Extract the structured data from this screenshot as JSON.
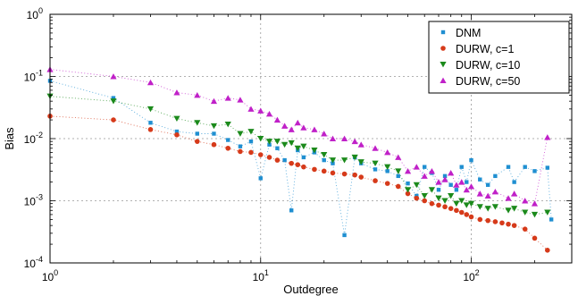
{
  "chart_data": {
    "type": "scatter",
    "title": "",
    "xlabel": "Outdegree",
    "ylabel": "Bias",
    "xscale": "log",
    "yscale": "log",
    "xlim": [
      1,
      300
    ],
    "ylim": [
      0.0001,
      1
    ],
    "grid": true,
    "legend_position": "top-right",
    "x_ticks": [
      {
        "base": "10",
        "exp": "0"
      },
      {
        "base": "10",
        "exp": "1"
      },
      {
        "base": "10",
        "exp": "2"
      }
    ],
    "y_ticks": [
      {
        "base": "10",
        "exp": "-4"
      },
      {
        "base": "10",
        "exp": "-3"
      },
      {
        "base": "10",
        "exp": "-2"
      },
      {
        "base": "10",
        "exp": "-1"
      },
      {
        "base": "10",
        "exp": "0"
      }
    ],
    "series": [
      {
        "name": "DNM",
        "marker": "square",
        "color": "#1f8fd1",
        "points": [
          [
            1,
            0.085
          ],
          [
            2,
            0.045
          ],
          [
            3,
            0.018
          ],
          [
            4,
            0.013
          ],
          [
            5,
            0.012
          ],
          [
            6,
            0.012
          ],
          [
            7,
            0.0095
          ],
          [
            8,
            0.0075
          ],
          [
            9,
            0.009
          ],
          [
            10,
            0.0023
          ],
          [
            11,
            0.008
          ],
          [
            12,
            0.007
          ],
          [
            13,
            0.0045
          ],
          [
            14,
            0.0007
          ],
          [
            15,
            0.0065
          ],
          [
            16,
            0.005
          ],
          [
            18,
            0.006
          ],
          [
            20,
            0.0045
          ],
          [
            22,
            0.004
          ],
          [
            25,
            0.00028
          ],
          [
            28,
            0.005
          ],
          [
            30,
            0.004
          ],
          [
            35,
            0.0032
          ],
          [
            40,
            0.003
          ],
          [
            45,
            0.0025
          ],
          [
            50,
            0.0019
          ],
          [
            55,
            0.0012
          ],
          [
            60,
            0.0035
          ],
          [
            65,
            0.0028
          ],
          [
            70,
            0.0015
          ],
          [
            75,
            0.0025
          ],
          [
            80,
            0.0018
          ],
          [
            85,
            0.0015
          ],
          [
            90,
            0.0035
          ],
          [
            95,
            0.002
          ],
          [
            100,
            0.0045
          ],
          [
            110,
            0.0022
          ],
          [
            120,
            0.0018
          ],
          [
            130,
            0.0025
          ],
          [
            150,
            0.0035
          ],
          [
            160,
            0.002
          ],
          [
            180,
            0.0035
          ],
          [
            200,
            0.003
          ],
          [
            230,
            0.0034
          ],
          [
            240,
            0.0005
          ]
        ]
      },
      {
        "name": "DURW, c=1",
        "marker": "circle",
        "color": "#d63a1a",
        "points": [
          [
            1,
            0.023
          ],
          [
            2,
            0.02
          ],
          [
            3,
            0.014
          ],
          [
            4,
            0.0115
          ],
          [
            5,
            0.009
          ],
          [
            6,
            0.008
          ],
          [
            7,
            0.007
          ],
          [
            8,
            0.0062
          ],
          [
            9,
            0.006
          ],
          [
            10,
            0.0055
          ],
          [
            11,
            0.005
          ],
          [
            12,
            0.0045
          ],
          [
            14,
            0.004
          ],
          [
            15,
            0.0038
          ],
          [
            16,
            0.0035
          ],
          [
            18,
            0.0032
          ],
          [
            20,
            0.003
          ],
          [
            22,
            0.0028
          ],
          [
            25,
            0.0027
          ],
          [
            28,
            0.0026
          ],
          [
            30,
            0.0024
          ],
          [
            35,
            0.0021
          ],
          [
            40,
            0.0019
          ],
          [
            45,
            0.0017
          ],
          [
            50,
            0.0013
          ],
          [
            55,
            0.0011
          ],
          [
            60,
            0.001
          ],
          [
            65,
            0.0009
          ],
          [
            70,
            0.00085
          ],
          [
            75,
            0.0008
          ],
          [
            80,
            0.00075
          ],
          [
            85,
            0.0007
          ],
          [
            90,
            0.00065
          ],
          [
            95,
            0.0006
          ],
          [
            100,
            0.00055
          ],
          [
            110,
            0.0005
          ],
          [
            120,
            0.00048
          ],
          [
            130,
            0.00046
          ],
          [
            140,
            0.00044
          ],
          [
            150,
            0.00042
          ],
          [
            160,
            0.0004
          ],
          [
            180,
            0.00035
          ],
          [
            200,
            0.00025
          ],
          [
            230,
            0.00016
          ]
        ]
      },
      {
        "name": "DURW, c=10",
        "marker": "triangle-down",
        "color": "#1b8a1b",
        "points": [
          [
            1,
            0.048
          ],
          [
            2,
            0.04
          ],
          [
            3,
            0.03
          ],
          [
            4,
            0.021
          ],
          [
            5,
            0.018
          ],
          [
            6,
            0.016
          ],
          [
            7,
            0.017
          ],
          [
            8,
            0.012
          ],
          [
            9,
            0.013
          ],
          [
            10,
            0.01
          ],
          [
            11,
            0.009
          ],
          [
            12,
            0.009
          ],
          [
            13,
            0.008
          ],
          [
            14,
            0.0085
          ],
          [
            15,
            0.007
          ],
          [
            16,
            0.0075
          ],
          [
            18,
            0.0065
          ],
          [
            20,
            0.0055
          ],
          [
            22,
            0.0045
          ],
          [
            25,
            0.0045
          ],
          [
            28,
            0.005
          ],
          [
            30,
            0.0042
          ],
          [
            35,
            0.004
          ],
          [
            40,
            0.0035
          ],
          [
            45,
            0.003
          ],
          [
            50,
            0.0015
          ],
          [
            55,
            0.0018
          ],
          [
            60,
            0.0012
          ],
          [
            65,
            0.0015
          ],
          [
            70,
            0.0011
          ],
          [
            75,
            0.001
          ],
          [
            80,
            0.0012
          ],
          [
            85,
            0.0009
          ],
          [
            90,
            0.001
          ],
          [
            95,
            0.00085
          ],
          [
            100,
            0.0009
          ],
          [
            110,
            0.0008
          ],
          [
            120,
            0.00075
          ],
          [
            130,
            0.0008
          ],
          [
            150,
            0.0007
          ],
          [
            160,
            0.00075
          ],
          [
            180,
            0.00065
          ],
          [
            200,
            0.0006
          ],
          [
            230,
            0.00065
          ]
        ]
      },
      {
        "name": "DURW, c=50",
        "marker": "triangle-up",
        "color": "#c020c8",
        "points": [
          [
            1,
            0.13
          ],
          [
            2,
            0.1
          ],
          [
            3,
            0.08
          ],
          [
            4,
            0.055
          ],
          [
            5,
            0.05
          ],
          [
            6,
            0.04
          ],
          [
            7,
            0.045
          ],
          [
            8,
            0.042
          ],
          [
            9,
            0.03
          ],
          [
            10,
            0.028
          ],
          [
            11,
            0.025
          ],
          [
            12,
            0.02
          ],
          [
            13,
            0.016
          ],
          [
            14,
            0.014
          ],
          [
            15,
            0.018
          ],
          [
            16,
            0.015
          ],
          [
            18,
            0.014
          ],
          [
            20,
            0.012
          ],
          [
            22,
            0.01
          ],
          [
            25,
            0.01
          ],
          [
            28,
            0.009
          ],
          [
            30,
            0.008
          ],
          [
            35,
            0.007
          ],
          [
            40,
            0.006
          ],
          [
            45,
            0.005
          ],
          [
            50,
            0.003
          ],
          [
            55,
            0.0035
          ],
          [
            60,
            0.0025
          ],
          [
            65,
            0.003
          ],
          [
            70,
            0.002
          ],
          [
            75,
            0.0022
          ],
          [
            80,
            0.0028
          ],
          [
            85,
            0.0018
          ],
          [
            90,
            0.002
          ],
          [
            95,
            0.0015
          ],
          [
            100,
            0.0017
          ],
          [
            110,
            0.0013
          ],
          [
            120,
            0.0012
          ],
          [
            130,
            0.0014
          ],
          [
            150,
            0.0011
          ],
          [
            160,
            0.0013
          ],
          [
            180,
            0.001
          ],
          [
            200,
            0.0009
          ],
          [
            230,
            0.0105
          ]
        ]
      }
    ]
  }
}
